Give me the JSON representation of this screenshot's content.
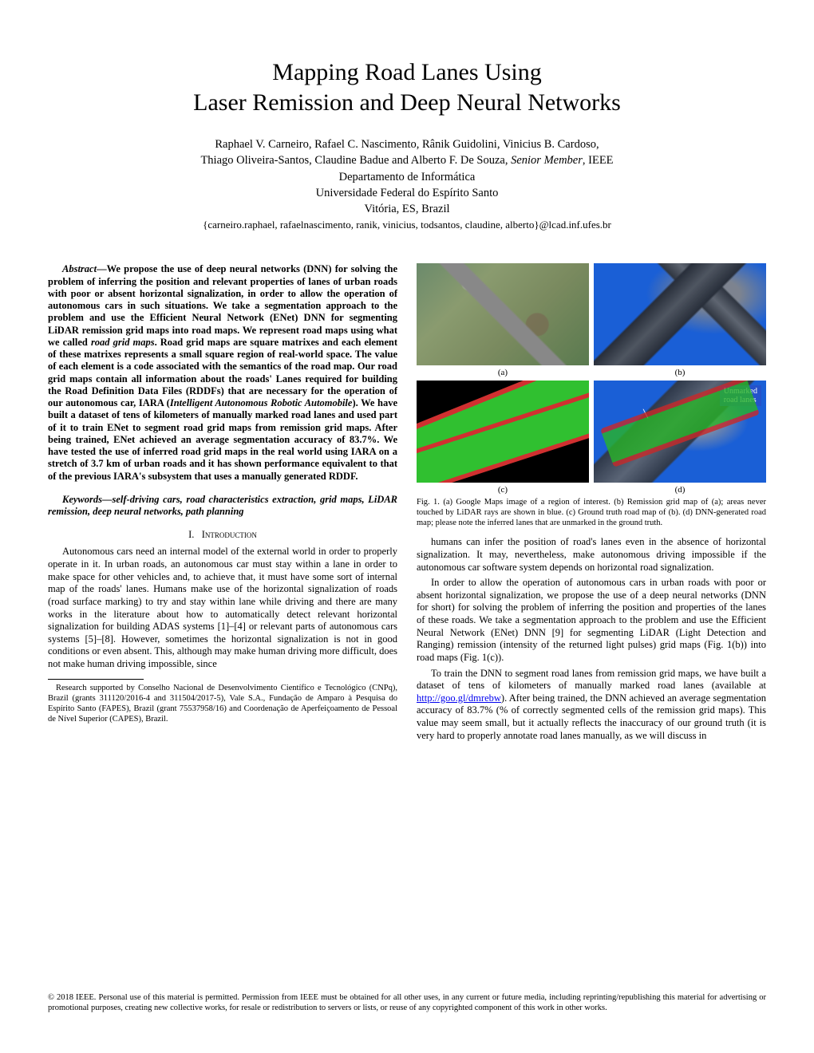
{
  "title_line1": "Mapping Road Lanes Using",
  "title_line2": "Laser Remission and Deep Neural Networks",
  "authors_line1": "Raphael V. Carneiro, Rafael C. Nascimento, Rânik Guidolini, Vinicius B. Cardoso,",
  "authors_line2_a": "Thiago Oliveira-Santos, Claudine Badue and Alberto F. De Souza, ",
  "authors_role": "Senior Member",
  "authors_line2_b": ", IEEE",
  "affil_dept": "Departamento de Informática",
  "affil_univ": "Universidade Federal do Espírito Santo",
  "affil_city": "Vitória, ES, Brazil",
  "emails": "{carneiro.raphael, rafaelnascimento, ranik, vinicius, todsantos, claudine, alberto}@lcad.inf.ufes.br",
  "abstract_prefix": "Abstract",
  "abstract_body": "—We propose the use of deep neural networks (DNN) for solving the problem of inferring the position and relevant properties of lanes of urban roads with poor or absent horizontal signalization, in order to allow the operation of autonomous cars in such situations. We take a segmentation approach to the problem and use the Efficient Neural Network (ENet) DNN for segmenting LiDAR remission grid maps into road maps. We represent road maps using what we called ",
  "abstract_em1": "road grid maps",
  "abstract_body2": ". Road grid maps are square matrixes and each element of these matrixes represents a small square region of real-world space. The value of each element is a code associated with the semantics of the road map. Our road grid maps contain all information about the roads' Lanes required for building the Road Definition Data Files (RDDFs) that are necessary for the operation of our autonomous car, IARA (",
  "abstract_em2": "Intelligent Autonomous Robotic Automobile",
  "abstract_body3": "). We have built a dataset of tens of kilometers of manually marked road lanes and used part of it to train ENet to segment road grid maps from remission grid maps. After being trained, ENet achieved an average segmentation accuracy of 83.7%. We have tested the use of inferred road grid maps in the real world using IARA on a stretch of 3.7 km of urban roads and it has shown performance equivalent to that of the previous IARA's subsystem that uses a manually generated RDDF.",
  "keywords": "Keywords—self-driving cars, road characteristics extraction, grid maps, LiDAR remission, deep neural networks, path planning",
  "sec1_num": "I.",
  "sec1_title": "Introduction",
  "intro_p1": "Autonomous cars need an internal model of the external world in order to properly operate in it. In urban roads, an autonomous car must stay within a lane in order to make space for other vehicles and, to achieve that, it must have some sort of internal map of the roads' lanes. Humans make use of the horizontal signalization of roads (road surface marking) to try and stay within lane while driving and there are many works in the literature about how to automatically detect relevant horizontal signalization for building ADAS systems [1]–[4] or relevant parts of autonomous cars systems [5]–[8]. However, sometimes the horizontal signalization is not in good conditions or even absent. This, although may make human driving more difficult, does not make human driving impossible, since",
  "funding": "Research supported by Conselho Nacional de Desenvolvimento Científico e Tecnológico (CNPq), Brazil (grants 311120/2016-4 and 311504/2017-5), Vale S.A., Fundação de Amparo à Pesquisa do Espírito Santo (FAPES), Brazil (grant 75537958/16) and Coordenação de Aperfeiçoamento de Pessoal de Nível Superior (CAPES), Brazil.",
  "fig_label_a": "(a)",
  "fig_label_b": "(b)",
  "fig_label_c": "(c)",
  "fig_label_d": "(d)",
  "fig_annot_line1": "Unmarked",
  "fig_annot_line2": "road lanes",
  "fig_caption": "Fig. 1.   (a) Google Maps image of a region of interest. (b) Remission grid map of (a); areas never touched by LiDAR rays are shown in blue. (c) Ground truth road map of (b). (d) DNN-generated road map; please note the inferred lanes that are unmarked in the ground truth.",
  "col2_p1": "humans can infer the position of road's lanes even in the absence of horizontal signalization. It may, nevertheless, make autonomous driving impossible if the autonomous car software system depends on horizontal road signalization.",
  "col2_p2": "In order to allow the operation of autonomous cars in urban roads with poor or absent horizontal signalization, we propose the use of a deep neural networks (DNN for short) for solving the problem of inferring the position and properties of the lanes of these roads. We take a segmentation approach to the problem and use the Efficient Neural Network (ENet) DNN [9] for segmenting LiDAR (Light Detection and Ranging) remission (intensity of the returned light pulses) grid maps (Fig. 1(b)) into road maps (Fig. 1(c)).",
  "col2_p3a": "To train the DNN to segment road lanes from remission grid maps, we have built a dataset of tens of kilometers of manually marked road lanes (available at ",
  "col2_link": "http://goo.gl/dmrebw",
  "col2_p3b": "). After being trained, the DNN achieved an average segmentation accuracy of 83.7% (% of correctly segmented cells of the remission grid maps). This value may seem small, but it actually reflects the inaccuracy of our ground truth (it is very hard to properly annotate road lanes manually, as we will discuss in",
  "copyright": "© 2018 IEEE. Personal use of this material is permitted. Permission from IEEE must be obtained for all other uses, in any current or future media, including reprinting/republishing this material for advertising or promotional purposes, creating new collective works, for resale or redistribution to servers or lists, or reuse of any copyrighted component of this work in other works."
}
